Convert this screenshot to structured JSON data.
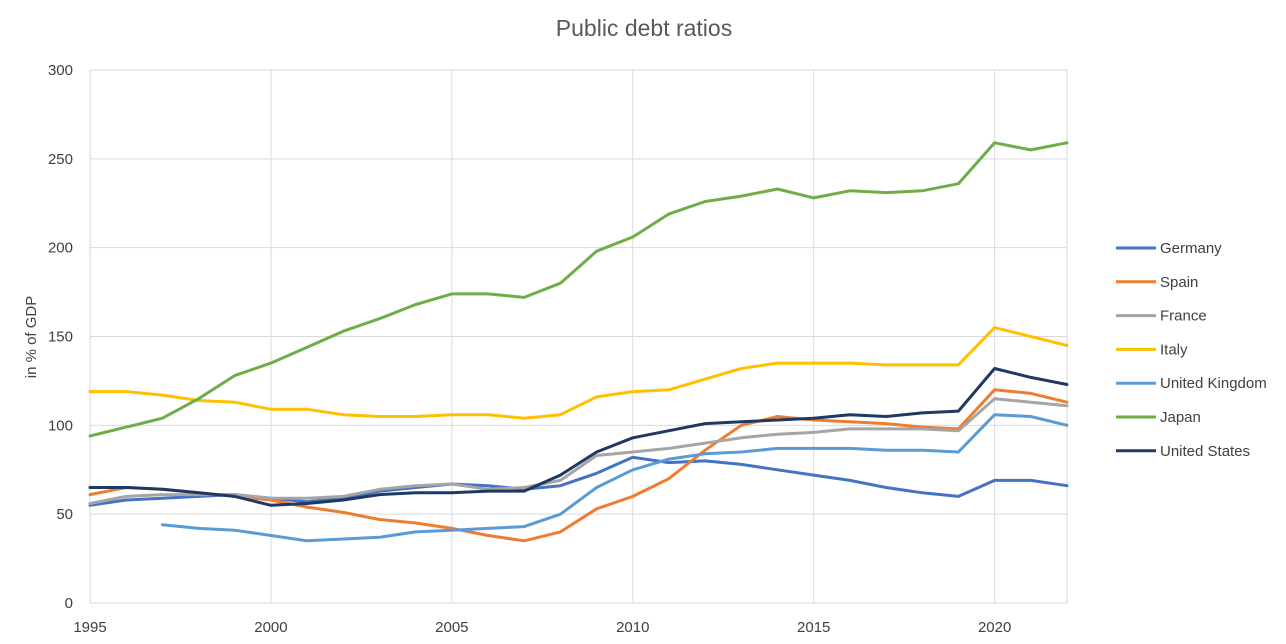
{
  "chart_data": {
    "type": "line",
    "title": "Public debt ratios",
    "xlabel": "",
    "ylabel": "in % of GDP",
    "xlim": [
      1995,
      2022
    ],
    "ylim": [
      0,
      300
    ],
    "x_ticks": [
      1995,
      2000,
      2005,
      2010,
      2015,
      2020
    ],
    "y_ticks": [
      0,
      50,
      100,
      150,
      200,
      250,
      300
    ],
    "grid": "vertical major lines and horizontal major lines",
    "legend_position": "right",
    "x": [
      1995,
      1996,
      1997,
      1998,
      1999,
      2000,
      2001,
      2002,
      2003,
      2004,
      2005,
      2006,
      2007,
      2008,
      2009,
      2010,
      2011,
      2012,
      2013,
      2014,
      2015,
      2016,
      2017,
      2018,
      2019,
      2020,
      2021,
      2022
    ],
    "series": [
      {
        "name": "Germany",
        "color": "#4472c4",
        "values": [
          55,
          58,
          59,
          60,
          61,
          59,
          57,
          59,
          63,
          65,
          67,
          66,
          64,
          66,
          73,
          82,
          79,
          80,
          78,
          75,
          72,
          69,
          65,
          62,
          60,
          69,
          69,
          66
        ]
      },
      {
        "name": "Spain",
        "color": "#ed7d31",
        "values": [
          61,
          65,
          64,
          62,
          60,
          58,
          54,
          51,
          47,
          45,
          42,
          38,
          35,
          40,
          53,
          60,
          70,
          86,
          100,
          105,
          103,
          102,
          101,
          99,
          98,
          120,
          118,
          113
        ]
      },
      {
        "name": "France",
        "color": "#a5a5a5",
        "values": [
          56,
          60,
          61,
          61,
          61,
          59,
          59,
          60,
          64,
          66,
          67,
          64,
          65,
          69,
          83,
          85,
          87,
          90,
          93,
          95,
          96,
          98,
          98,
          98,
          97,
          115,
          113,
          111
        ]
      },
      {
        "name": "Italy",
        "color": "#ffc000",
        "values": [
          119,
          119,
          117,
          114,
          113,
          109,
          109,
          106,
          105,
          105,
          106,
          106,
          104,
          106,
          116,
          119,
          120,
          126,
          132,
          135,
          135,
          135,
          134,
          134,
          134,
          155,
          150,
          145
        ]
      },
      {
        "name": "United Kingdom",
        "color": "#5b9bd5",
        "values": [
          null,
          null,
          44,
          42,
          41,
          38,
          35,
          36,
          37,
          40,
          41,
          42,
          43,
          50,
          65,
          75,
          81,
          84,
          85,
          87,
          87,
          87,
          86,
          86,
          85,
          106,
          105,
          100
        ]
      },
      {
        "name": "Japan",
        "color": "#70ad47",
        "values": [
          94,
          99,
          104,
          115,
          128,
          135,
          144,
          153,
          160,
          168,
          174,
          174,
          172,
          180,
          198,
          206,
          219,
          226,
          229,
          233,
          228,
          232,
          231,
          232,
          236,
          259,
          255,
          259
        ]
      },
      {
        "name": "United States",
        "color": "#203864",
        "values": [
          65,
          65,
          64,
          62,
          60,
          55,
          56,
          58,
          61,
          62,
          62,
          63,
          63,
          72,
          85,
          93,
          97,
          101,
          102,
          103,
          104,
          106,
          105,
          107,
          108,
          132,
          127,
          123
        ]
      }
    ]
  }
}
